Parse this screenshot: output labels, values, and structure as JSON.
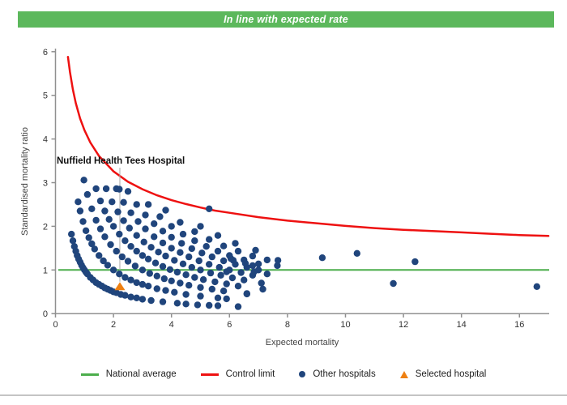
{
  "banner": {
    "text": "In line with expected rate",
    "bg_color": "#5cb85c",
    "text_color": "#ffffff"
  },
  "chart_data": {
    "type": "scatter",
    "xlabel": "Expected mortality",
    "ylabel": "Standardised mortality ratio",
    "xlim": [
      0,
      17
    ],
    "ylim": [
      0,
      6
    ],
    "x_ticks": [
      0,
      2,
      4,
      6,
      8,
      10,
      12,
      14,
      16
    ],
    "y_ticks": [
      0,
      1,
      2,
      3,
      4,
      5,
      6
    ],
    "grid": false,
    "legend_position": "bottom",
    "national_average": {
      "label": "National average",
      "color": "#4cae4c",
      "y": 1
    },
    "control_limit": {
      "label": "Control limit",
      "color": "#ee1111",
      "formula": "y = 1 + 3.2/sqrt(x)",
      "points": [
        [
          0.43,
          5.88
        ],
        [
          0.5,
          5.53
        ],
        [
          0.6,
          5.13
        ],
        [
          0.7,
          4.82
        ],
        [
          0.85,
          4.47
        ],
        [
          1,
          4.2
        ],
        [
          1.2,
          3.92
        ],
        [
          1.5,
          3.61
        ],
        [
          2,
          3.26
        ],
        [
          2.5,
          3.02
        ],
        [
          3,
          2.85
        ],
        [
          3.5,
          2.71
        ],
        [
          4,
          2.6
        ],
        [
          4.5,
          2.51
        ],
        [
          5,
          2.43
        ],
        [
          5.5,
          2.36
        ],
        [
          6,
          2.31
        ],
        [
          7,
          2.21
        ],
        [
          8,
          2.13
        ],
        [
          9,
          2.07
        ],
        [
          10,
          2.01
        ],
        [
          11,
          1.96
        ],
        [
          12,
          1.92
        ],
        [
          13,
          1.89
        ],
        [
          14,
          1.86
        ],
        [
          15,
          1.83
        ],
        [
          16,
          1.8
        ],
        [
          17,
          1.78
        ]
      ]
    },
    "other_hospitals": {
      "label": "Other hospitals",
      "color": "#20457c",
      "points": [
        [
          0.55,
          1.82
        ],
        [
          0.6,
          1.67
        ],
        [
          0.65,
          1.54
        ],
        [
          0.7,
          1.43
        ],
        [
          0.75,
          1.33
        ],
        [
          0.8,
          1.25
        ],
        [
          0.85,
          1.18
        ],
        [
          0.9,
          1.11
        ],
        [
          0.95,
          1.05
        ],
        [
          1.0,
          1.0
        ],
        [
          1.05,
          0.95
        ],
        [
          1.1,
          0.91
        ],
        [
          1.2,
          0.83
        ],
        [
          1.3,
          0.77
        ],
        [
          1.4,
          0.71
        ],
        [
          1.5,
          0.67
        ],
        [
          1.6,
          0.63
        ],
        [
          1.7,
          0.59
        ],
        [
          1.8,
          0.56
        ],
        [
          1.9,
          0.53
        ],
        [
          2.0,
          0.5
        ],
        [
          2.1,
          0.48
        ],
        [
          2.25,
          0.44
        ],
        [
          2.4,
          0.42
        ],
        [
          2.6,
          0.38
        ],
        [
          2.8,
          0.36
        ],
        [
          3.0,
          0.33
        ],
        [
          3.3,
          0.3
        ],
        [
          3.7,
          0.27
        ],
        [
          4.2,
          0.24
        ],
        [
          4.5,
          0.22
        ],
        [
          4.9,
          0.2
        ],
        [
          5.3,
          0.19
        ],
        [
          5.6,
          0.18
        ],
        [
          6.3,
          0.16
        ],
        [
          0.78,
          2.56
        ],
        [
          0.85,
          2.35
        ],
        [
          0.95,
          2.11
        ],
        [
          1.05,
          1.9
        ],
        [
          1.15,
          1.74
        ],
        [
          1.25,
          1.6
        ],
        [
          1.35,
          1.48
        ],
        [
          1.5,
          1.33
        ],
        [
          1.65,
          1.21
        ],
        [
          1.8,
          1.11
        ],
        [
          2.0,
          1.0
        ],
        [
          2.2,
          0.91
        ],
        [
          2.4,
          0.83
        ],
        [
          2.6,
          0.77
        ],
        [
          2.8,
          0.71
        ],
        [
          3.0,
          0.67
        ],
        [
          3.2,
          0.63
        ],
        [
          3.5,
          0.57
        ],
        [
          3.8,
          0.53
        ],
        [
          4.1,
          0.49
        ],
        [
          4.5,
          0.44
        ],
        [
          5.0,
          0.4
        ],
        [
          5.6,
          0.36
        ],
        [
          5.9,
          0.34
        ],
        [
          0.98,
          3.06
        ],
        [
          1.1,
          2.73
        ],
        [
          1.25,
          2.4
        ],
        [
          1.4,
          2.14
        ],
        [
          1.55,
          1.94
        ],
        [
          1.7,
          1.76
        ],
        [
          1.9,
          1.58
        ],
        [
          2.1,
          1.43
        ],
        [
          2.3,
          1.3
        ],
        [
          2.5,
          1.2
        ],
        [
          2.75,
          1.09
        ],
        [
          3.0,
          1.0
        ],
        [
          3.25,
          0.92
        ],
        [
          3.5,
          0.86
        ],
        [
          3.75,
          0.8
        ],
        [
          4.0,
          0.75
        ],
        [
          4.3,
          0.7
        ],
        [
          4.6,
          0.65
        ],
        [
          5.0,
          0.6
        ],
        [
          5.4,
          0.56
        ],
        [
          5.8,
          0.52
        ],
        [
          6.6,
          0.45
        ],
        [
          1.4,
          2.86
        ],
        [
          1.55,
          2.58
        ],
        [
          1.7,
          2.35
        ],
        [
          1.85,
          2.16
        ],
        [
          2.0,
          2.0
        ],
        [
          2.2,
          1.82
        ],
        [
          2.4,
          1.67
        ],
        [
          2.6,
          1.54
        ],
        [
          2.8,
          1.43
        ],
        [
          3.0,
          1.33
        ],
        [
          3.2,
          1.25
        ],
        [
          3.45,
          1.16
        ],
        [
          3.7,
          1.08
        ],
        [
          3.95,
          1.01
        ],
        [
          4.2,
          0.95
        ],
        [
          4.5,
          0.89
        ],
        [
          4.8,
          0.83
        ],
        [
          5.1,
          0.78
        ],
        [
          5.5,
          0.73
        ],
        [
          5.9,
          0.68
        ],
        [
          6.3,
          0.63
        ],
        [
          7.15,
          0.56
        ],
        [
          1.75,
          2.86
        ],
        [
          1.95,
          2.56
        ],
        [
          2.15,
          2.33
        ],
        [
          2.35,
          2.13
        ],
        [
          2.55,
          1.96
        ],
        [
          2.8,
          1.79
        ],
        [
          3.05,
          1.64
        ],
        [
          3.3,
          1.52
        ],
        [
          3.55,
          1.41
        ],
        [
          3.8,
          1.32
        ],
        [
          4.1,
          1.22
        ],
        [
          4.4,
          1.14
        ],
        [
          4.7,
          1.06
        ],
        [
          5.0,
          1.0
        ],
        [
          5.35,
          0.93
        ],
        [
          5.7,
          0.88
        ],
        [
          6.1,
          0.82
        ],
        [
          6.5,
          0.77
        ],
        [
          7.1,
          0.7
        ],
        [
          2.1,
          2.86
        ],
        [
          2.35,
          2.55
        ],
        [
          2.6,
          2.31
        ],
        [
          2.85,
          2.11
        ],
        [
          3.1,
          1.94
        ],
        [
          3.4,
          1.76
        ],
        [
          3.7,
          1.62
        ],
        [
          4.0,
          1.5
        ],
        [
          4.3,
          1.4
        ],
        [
          4.6,
          1.3
        ],
        [
          4.95,
          1.21
        ],
        [
          5.3,
          1.13
        ],
        [
          5.65,
          1.06
        ],
        [
          6.0,
          1.0
        ],
        [
          6.4,
          0.94
        ],
        [
          6.8,
          0.88
        ],
        [
          2.5,
          2.8
        ],
        [
          2.8,
          2.5
        ],
        [
          3.1,
          2.26
        ],
        [
          3.4,
          2.06
        ],
        [
          3.7,
          1.89
        ],
        [
          4.0,
          1.75
        ],
        [
          4.35,
          1.61
        ],
        [
          4.7,
          1.49
        ],
        [
          5.05,
          1.39
        ],
        [
          5.4,
          1.3
        ],
        [
          5.8,
          1.21
        ],
        [
          6.2,
          1.13
        ],
        [
          6.6,
          1.06
        ],
        [
          7.0,
          1.0
        ],
        [
          3.2,
          2.5
        ],
        [
          3.6,
          2.22
        ],
        [
          4.0,
          2.0
        ],
        [
          4.4,
          1.82
        ],
        [
          4.8,
          1.67
        ],
        [
          5.2,
          1.54
        ],
        [
          5.6,
          1.43
        ],
        [
          6.0,
          1.33
        ],
        [
          6.5,
          1.23
        ],
        [
          7.0,
          1.14
        ],
        [
          3.8,
          2.37
        ],
        [
          4.3,
          2.09
        ],
        [
          4.8,
          1.88
        ],
        [
          5.3,
          1.7
        ],
        [
          5.8,
          1.55
        ],
        [
          6.3,
          1.43
        ],
        [
          6.8,
          1.32
        ],
        [
          7.3,
          1.23
        ],
        [
          5.0,
          2.0
        ],
        [
          5.6,
          1.79
        ],
        [
          6.2,
          1.61
        ],
        [
          6.9,
          1.45
        ],
        [
          2.2,
          2.85
        ],
        [
          5.3,
          2.4
        ],
        [
          5.9,
          0.96
        ],
        [
          6.05,
          1.26
        ],
        [
          6.13,
          1.22
        ],
        [
          6.55,
          1.15
        ],
        [
          6.6,
          0.46
        ],
        [
          6.8,
          1.1
        ],
        [
          6.85,
          0.96
        ],
        [
          7.3,
          0.91
        ],
        [
          7.65,
          1.1
        ],
        [
          7.67,
          1.22
        ],
        [
          9.2,
          1.28
        ],
        [
          10.4,
          1.38
        ],
        [
          11.65,
          0.69
        ],
        [
          12.4,
          1.19
        ],
        [
          16.6,
          0.62
        ]
      ]
    },
    "selected_hospital": {
      "label": "Selected hospital",
      "color": "#ee8012",
      "x": 2.22,
      "y": 0.62,
      "annotation": "Nuffield Health Tees Hospital"
    }
  },
  "legend": {
    "items": [
      "National average",
      "Control limit",
      "Other hospitals",
      "Selected hospital"
    ]
  }
}
